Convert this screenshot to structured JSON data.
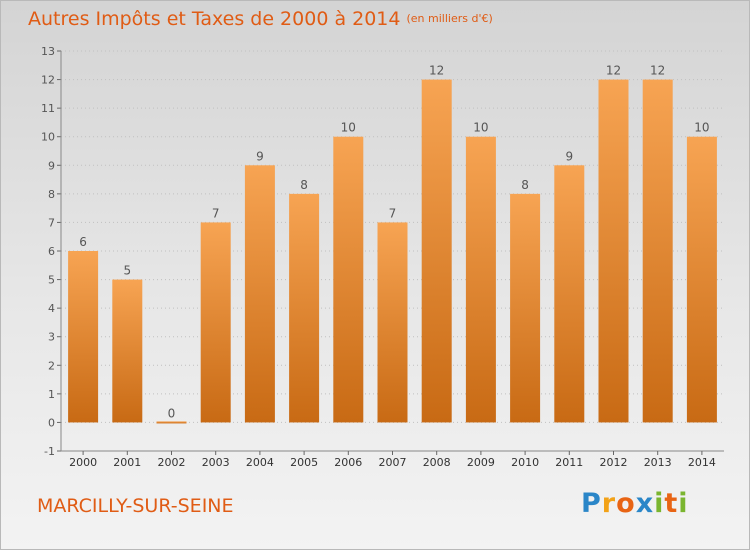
{
  "title": "Autres Impôts et Taxes de 2000 à 2014",
  "title_unit": "(en milliers d'€)",
  "city": "MARCILLY-SUR-SEINE",
  "logo": {
    "letters": [
      "P",
      "r",
      "o",
      "x",
      "i",
      "t",
      "i"
    ],
    "colors": [
      "#2a86c8",
      "#f2a218",
      "#e86414",
      "#2a86c8",
      "#7ab52f",
      "#e86414",
      "#7ab52f"
    ]
  },
  "colors": {
    "title": "#e05c15",
    "bar_top": "#f7a453",
    "bar_bottom": "#c86a14",
    "grid": "#c0c0c0",
    "axis_text": "#555555"
  },
  "chart_data": {
    "type": "bar",
    "categories": [
      "2000",
      "2001",
      "2002",
      "2003",
      "2004",
      "2005",
      "2006",
      "2007",
      "2008",
      "2009",
      "2010",
      "2011",
      "2012",
      "2013",
      "2014"
    ],
    "values": [
      6,
      5,
      0,
      7,
      9,
      8,
      10,
      7,
      12,
      10,
      8,
      9,
      12,
      12,
      10
    ],
    "data_labels": [
      "6",
      "5",
      "0",
      "7",
      "9",
      "8",
      "10",
      "7",
      "12",
      "10",
      "8",
      "9",
      "12",
      "12",
      "10"
    ],
    "y_ticks": [
      "-1",
      "0",
      "1",
      "2",
      "3",
      "4",
      "5",
      "6",
      "7",
      "8",
      "9",
      "10",
      "11",
      "12",
      "13"
    ],
    "ylim": [
      -1,
      13
    ],
    "grid": true,
    "xlabel": "",
    "ylabel": ""
  }
}
